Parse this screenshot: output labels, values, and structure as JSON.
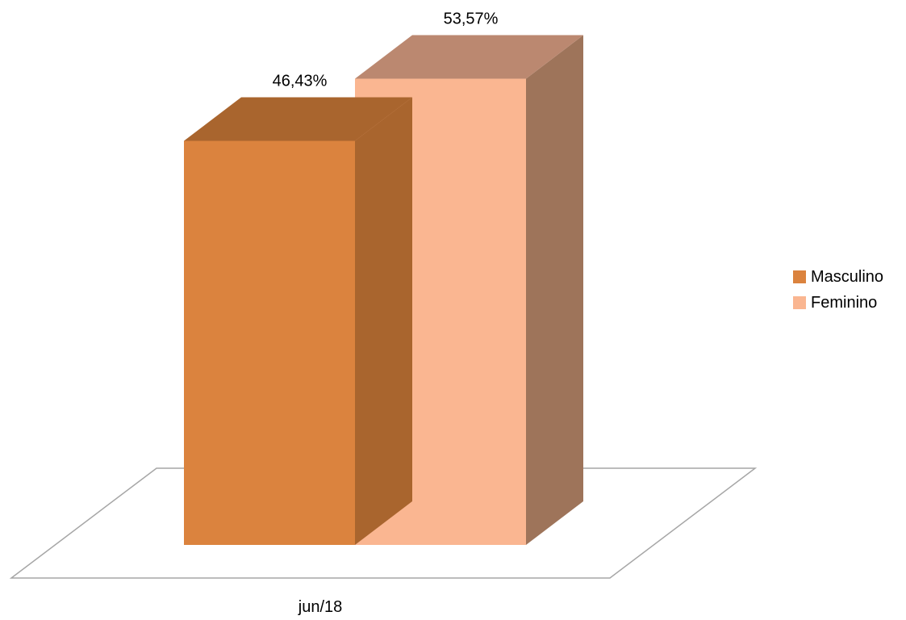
{
  "chart_data": {
    "type": "bar",
    "categories": [
      "jun/18"
    ],
    "series": [
      {
        "name": "Masculino",
        "values": [
          46.43
        ],
        "label": "46,43%",
        "color": "#DB833E",
        "top_color": "#A9652E",
        "side_color": "#A9652E"
      },
      {
        "name": "Feminino",
        "values": [
          53.57
        ],
        "label": "53,57%",
        "color": "#FAB691",
        "top_color": "#BB8870",
        "side_color": "#9E745A"
      }
    ],
    "ylim": [
      0,
      60
    ],
    "grid": false,
    "legend": "right",
    "floor_color": "#A6A6A6"
  }
}
